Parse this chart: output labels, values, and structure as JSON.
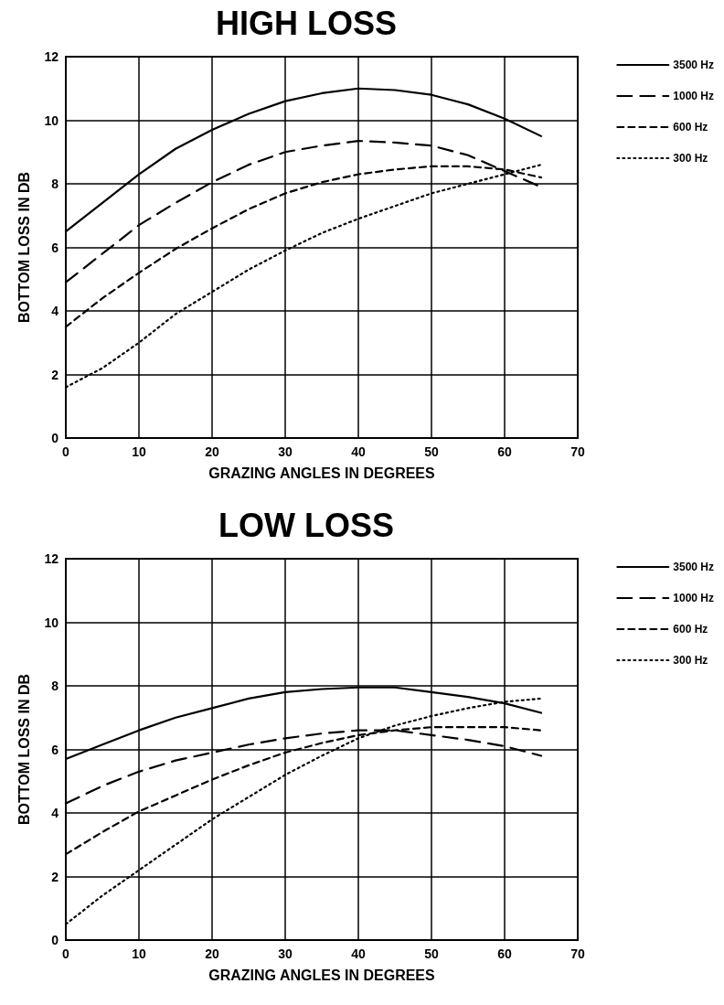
{
  "chart_data": [
    {
      "type": "line",
      "title": "HIGH LOSS",
      "xlabel": "GRAZING ANGLES IN DEGREES",
      "ylabel": "BOTTOM LOSS IN DB",
      "x": [
        0,
        5,
        10,
        15,
        20,
        25,
        30,
        35,
        40,
        45,
        50,
        55,
        60,
        65
      ],
      "series": [
        {
          "name": "3500 Hz",
          "color": "#000000",
          "line_style": "solid",
          "values": [
            6.5,
            7.4,
            8.3,
            9.1,
            9.7,
            10.2,
            10.6,
            10.85,
            11.0,
            10.95,
            10.8,
            10.5,
            10.05,
            9.5
          ]
        },
        {
          "name": "1000 Hz",
          "color": "#000000",
          "line_style": "dashed",
          "values": [
            4.9,
            5.8,
            6.7,
            7.4,
            8.05,
            8.6,
            9.0,
            9.2,
            9.35,
            9.3,
            9.2,
            8.9,
            8.4,
            7.9
          ]
        },
        {
          "name": "600 Hz",
          "color": "#000000",
          "line_style": "dashed",
          "values": [
            3.5,
            4.4,
            5.2,
            5.95,
            6.6,
            7.2,
            7.7,
            8.05,
            8.3,
            8.45,
            8.55,
            8.55,
            8.45,
            8.2
          ]
        },
        {
          "name": "300 Hz",
          "color": "#000000",
          "line_style": "dotted",
          "values": [
            1.6,
            2.2,
            3.0,
            3.9,
            4.6,
            5.3,
            5.9,
            6.45,
            6.9,
            7.3,
            7.7,
            8.0,
            8.3,
            8.6
          ]
        }
      ],
      "xlim": [
        0,
        70
      ],
      "xticks": [
        0,
        10,
        20,
        30,
        40,
        50,
        60,
        70
      ],
      "ylim": [
        0,
        12
      ],
      "yticks": [
        0,
        2,
        4,
        6,
        8,
        10,
        12
      ],
      "grid": true,
      "legend": "top right",
      "marker": "none"
    },
    {
      "type": "line",
      "title": "LOW LOSS",
      "xlabel": "GRAZING ANGLES IN DEGREES",
      "ylabel": "BOTTOM LOSS IN DB",
      "x": [
        0,
        5,
        10,
        15,
        20,
        25,
        30,
        35,
        40,
        45,
        50,
        55,
        60,
        65
      ],
      "series": [
        {
          "name": "3500 Hz",
          "color": "#000000",
          "line_style": "solid",
          "values": [
            5.7,
            6.15,
            6.6,
            7.0,
            7.3,
            7.6,
            7.8,
            7.9,
            7.95,
            7.95,
            7.8,
            7.65,
            7.45,
            7.15
          ]
        },
        {
          "name": "1000 Hz",
          "color": "#000000",
          "line_style": "dashed",
          "values": [
            4.3,
            4.85,
            5.3,
            5.65,
            5.9,
            6.15,
            6.35,
            6.5,
            6.6,
            6.6,
            6.45,
            6.3,
            6.1,
            5.8
          ]
        },
        {
          "name": "600 Hz",
          "color": "#000000",
          "line_style": "dashed",
          "values": [
            2.7,
            3.4,
            4.05,
            4.55,
            5.05,
            5.5,
            5.9,
            6.2,
            6.45,
            6.6,
            6.7,
            6.7,
            6.7,
            6.6
          ]
        },
        {
          "name": "300 Hz",
          "color": "#000000",
          "line_style": "dotted",
          "values": [
            0.5,
            1.4,
            2.2,
            3.0,
            3.8,
            4.5,
            5.2,
            5.8,
            6.35,
            6.75,
            7.05,
            7.3,
            7.5,
            7.6
          ]
        }
      ],
      "xlim": [
        0,
        70
      ],
      "xticks": [
        0,
        10,
        20,
        30,
        40,
        50,
        60,
        70
      ],
      "ylim": [
        0,
        12
      ],
      "yticks": [
        0,
        2,
        4,
        6,
        8,
        10,
        12
      ],
      "grid": true,
      "legend": "top right",
      "marker": "none"
    }
  ]
}
